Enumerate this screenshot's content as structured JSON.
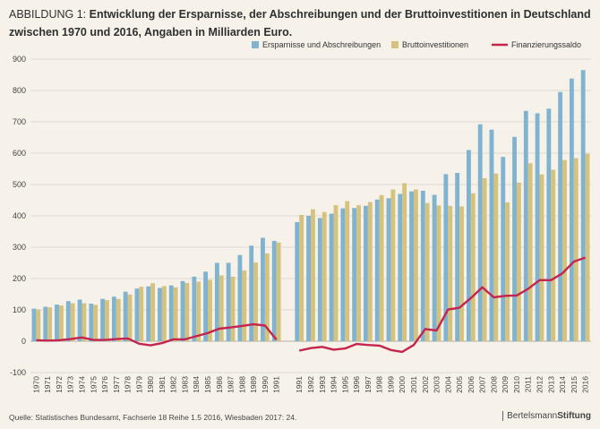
{
  "header": {
    "label": "ABBILDUNG 1:",
    "line1": "Entwicklung der Ersparnisse, der Abschreibungen und der Bruttoinvestitionen in Deutschland",
    "line2": "zwischen 1970 und 2016, Angaben in Milliarden Euro."
  },
  "footer": {
    "source": "Quelle: Statistisches Bundesamt, Fachserie 18 Reihe 1.5 2016, Wiesbaden 2017: 24.",
    "brand_light": "Bertelsmann",
    "brand_bold": "Stiftung"
  },
  "colors": {
    "savings": "#7fb3cf",
    "investment": "#d4c27e",
    "balance": "#c4244e",
    "grid": "#d7d3cc",
    "background": "#f6f2ea"
  },
  "chart_data": {
    "type": "bar",
    "title": "Entwicklung der Ersparnisse, der Abschreibungen und der Bruttoinvestitionen in Deutschland zwischen 1970 und 2016, Angaben in Milliarden Euro.",
    "xlabel": "",
    "ylabel": "",
    "ylim": [
      -100,
      900
    ],
    "yticks": [
      -100,
      0,
      100,
      200,
      300,
      400,
      500,
      600,
      700,
      800,
      900
    ],
    "legend_position": "top-right",
    "categories": [
      "1970",
      "1971",
      "1972",
      "1973",
      "1974",
      "1975",
      "1976",
      "1977",
      "1978",
      "1979",
      "1980",
      "1981",
      "1982",
      "1983",
      "1984",
      "1985",
      "1986",
      "1987",
      "1988",
      "1989",
      "1990",
      "1991",
      "1991",
      "1992",
      "1993",
      "1994",
      "1995",
      "1996",
      "1997",
      "1998",
      "1999",
      "2000",
      "2001",
      "2002",
      "2003",
      "2004",
      "2005",
      "2006",
      "2007",
      "2008",
      "2009",
      "2010",
      "2011",
      "2012",
      "2013",
      "2014",
      "2015",
      "2016"
    ],
    "gap_index": 22,
    "series": [
      {
        "name": "Ersparnisse und Abschreibungen",
        "type": "bar",
        "values": [
          104,
          110,
          117,
          128,
          133,
          120,
          135,
          142,
          158,
          168,
          175,
          170,
          178,
          192,
          206,
          222,
          250,
          250,
          275,
          305,
          330,
          320,
          380,
          400,
          393,
          407,
          424,
          425,
          432,
          452,
          456,
          470,
          478,
          480,
          467,
          533,
          537,
          610,
          692,
          675,
          588,
          652,
          735,
          727,
          742,
          795,
          838,
          865
        ]
      },
      {
        "name": "Bruttoinvestitionen",
        "type": "bar",
        "values": [
          101,
          108,
          114,
          121,
          121,
          116,
          131,
          135,
          149,
          174,
          185,
          176,
          172,
          186,
          190,
          196,
          210,
          206,
          226,
          251,
          280,
          315,
          403,
          421,
          412,
          434,
          447,
          434,
          444,
          466,
          484,
          504,
          484,
          441,
          433,
          432,
          430,
          472,
          520,
          535,
          443,
          506,
          568,
          532,
          547,
          578,
          584,
          598
        ]
      },
      {
        "name": "Finanzierungssaldo",
        "type": "line",
        "values": [
          3,
          2,
          3,
          7,
          12,
          4,
          4,
          7,
          9,
          -8,
          -13,
          -6,
          6,
          6,
          16,
          26,
          40,
          44,
          49,
          54,
          50,
          5,
          -30,
          -22,
          -18,
          -27,
          -23,
          -9,
          -12,
          -14,
          -28,
          -34,
          -12,
          39,
          34,
          101,
          107,
          138,
          172,
          140,
          145,
          146,
          167,
          195,
          195,
          217,
          254,
          267
        ]
      }
    ]
  }
}
